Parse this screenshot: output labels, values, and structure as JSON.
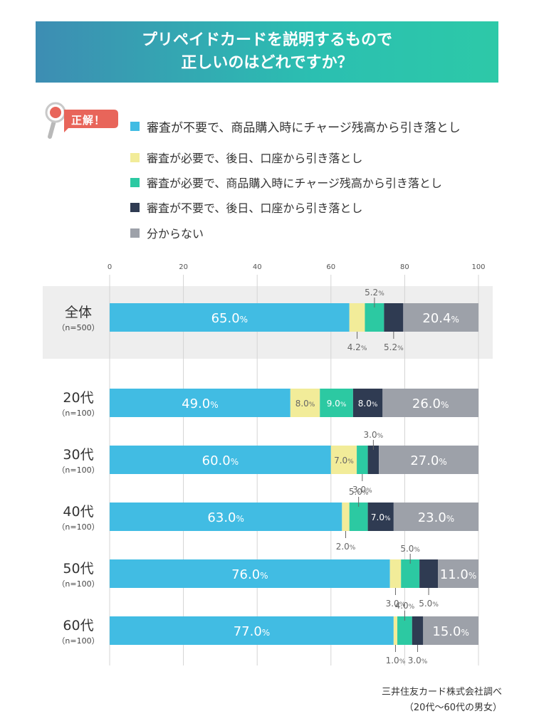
{
  "banner": {
    "line1": "プリペイドカードを説明するもので",
    "line2": "正しいのはどれですか？"
  },
  "correct_badge": {
    "label": "正解！",
    "icon": "magnifier-icon"
  },
  "colors": {
    "c1": "#41bce3",
    "c2": "#f2ec99",
    "c3": "#2cc9a2",
    "c4": "#2f3b52",
    "c5": "#9da1a9",
    "badge": "#e8655a",
    "highlight_row": "#eeeeee"
  },
  "source": {
    "line1": "三井住友カード株式会社調べ",
    "line2": "（20代〜60代の男女）"
  },
  "chart_data": {
    "type": "bar",
    "orientation": "horizontal",
    "stacked": true,
    "xlim": [
      0,
      100
    ],
    "xticks": [
      0,
      20,
      40,
      60,
      80,
      100
    ],
    "grid": true,
    "legend_position": "top",
    "value_suffix": "%",
    "categories": [
      {
        "name": "全体",
        "sub": "（n=500）"
      },
      {
        "name": "20代",
        "sub": "（n=100）"
      },
      {
        "name": "30代",
        "sub": "（n=100）"
      },
      {
        "name": "40代",
        "sub": "（n=100）"
      },
      {
        "name": "50代",
        "sub": "（n=100）"
      },
      {
        "name": "60代",
        "sub": "（n=100）"
      }
    ],
    "series": [
      {
        "name": "審査が不要で、商品購入時にチャージ残高から引き落とし",
        "color": "#41bce3",
        "values": [
          65.0,
          49.0,
          60.0,
          63.0,
          76.0,
          77.0
        ]
      },
      {
        "name": "審査が必要で、後日、口座から引き落とし",
        "color": "#f2ec99",
        "values": [
          4.2,
          8.0,
          7.0,
          2.0,
          3.0,
          1.0
        ]
      },
      {
        "name": "審査が必要で、商品購入時にチャージ残高から引き落とし",
        "color": "#2cc9a2",
        "values": [
          5.2,
          9.0,
          3.0,
          5.0,
          5.0,
          4.0
        ]
      },
      {
        "name": "審査が不要で、後日、口座から引き落とし",
        "color": "#2f3b52",
        "values": [
          5.2,
          8.0,
          3.0,
          7.0,
          5.0,
          3.0
        ]
      },
      {
        "name": "分からない",
        "color": "#9da1a9",
        "values": [
          20.4,
          26.0,
          27.0,
          23.0,
          11.0,
          15.0
        ]
      }
    ],
    "label_text": [
      [
        "65.0",
        "4.2",
        "5.2",
        "5.2",
        "20.4"
      ],
      [
        "49.0",
        "8.0",
        "9.0",
        "8.0",
        "26.0"
      ],
      [
        "60.0",
        "7.0",
        "3.0",
        "3.0",
        "27.0"
      ],
      [
        "63.0",
        "2.0",
        "5.0",
        "7.0",
        "23.0"
      ],
      [
        "76.0",
        "3.0",
        "5.0",
        "5.0",
        "11.0"
      ],
      [
        "77.0",
        "1.0",
        "4.0",
        "3.0",
        "15.0"
      ]
    ],
    "label_placement": [
      [
        "inside",
        "below",
        "above",
        "below",
        "inside"
      ],
      [
        "inside",
        "inside",
        "inside",
        "inside",
        "inside"
      ],
      [
        "inside",
        "inside",
        "below",
        "above",
        "inside"
      ],
      [
        "inside",
        "below",
        "above",
        "inside",
        "inside"
      ],
      [
        "inside",
        "below",
        "above",
        "below",
        "inside"
      ],
      [
        "inside",
        "below",
        "above",
        "below",
        "inside"
      ]
    ],
    "correct_series_index": 0
  }
}
